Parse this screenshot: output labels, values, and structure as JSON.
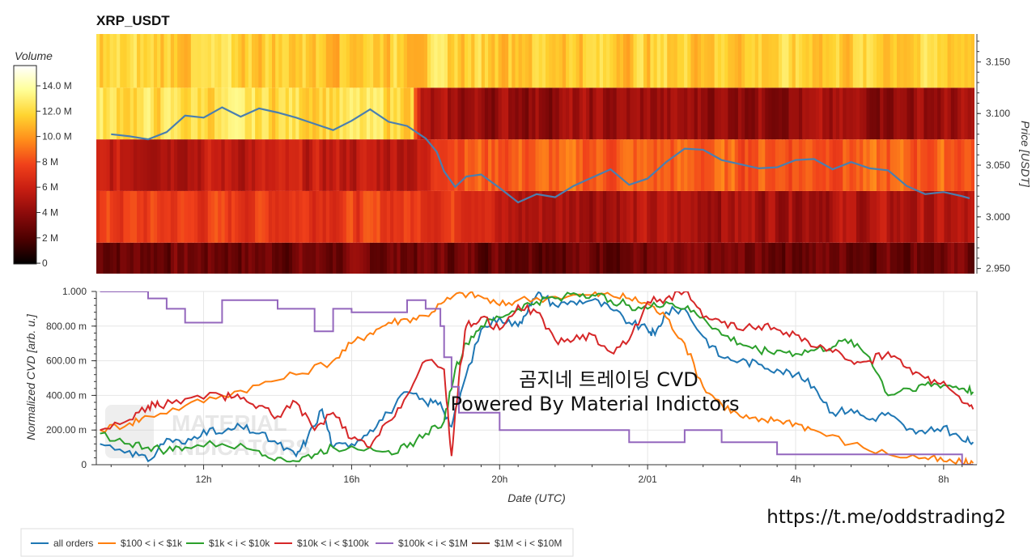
{
  "chart_data": [
    {
      "type": "heatmap",
      "title": "XRP_USDT",
      "ylabel": "Price [USDT]",
      "y_ticks": [
        "3.150",
        "3.100",
        "3.050",
        "3.000",
        "2.950"
      ],
      "ylim": [
        2.945,
        3.177
      ],
      "price_bands": [
        {
          "low": 2.945,
          "high": 2.975
        },
        {
          "low": 2.975,
          "high": 3.025
        },
        {
          "low": 3.025,
          "high": 3.075
        },
        {
          "low": 3.075,
          "high": 3.125
        },
        {
          "low": 3.125,
          "high": 3.177
        }
      ],
      "colorbar": {
        "title": "Volume",
        "ticks": [
          "14.0 M",
          "12.0 M",
          "10.0 M",
          "8 M",
          "6 M",
          "4 M",
          "2 M",
          "0"
        ],
        "range": [
          0,
          15.5
        ],
        "colors": [
          "#000000",
          "#4a0000",
          "#8a0a0a",
          "#c81e12",
          "#f0401a",
          "#ff8a1a",
          "#ffd430",
          "#ffff9a",
          "#ffffff"
        ]
      },
      "series": [
        {
          "name": "price",
          "color": "#4a7fb0",
          "x": [
            0,
            0.5,
            1,
            1.5,
            2,
            2.5,
            3,
            3.5,
            4,
            4.5,
            5,
            5.5,
            6,
            6.5,
            7,
            7.5,
            8,
            8.5,
            8.8,
            9,
            9.3,
            9.6,
            10,
            10.5,
            11,
            11.5,
            12,
            12.5,
            13,
            13.5,
            14,
            14.5,
            15,
            15.5,
            16,
            16.5,
            17,
            17.5,
            18,
            18.5,
            19,
            19.5,
            20,
            20.5,
            21,
            21.5,
            22,
            22.5,
            23,
            23.2
          ],
          "values": [
            3.08,
            3.078,
            3.075,
            3.082,
            3.098,
            3.096,
            3.106,
            3.097,
            3.105,
            3.101,
            3.096,
            3.09,
            3.084,
            3.093,
            3.104,
            3.092,
            3.088,
            3.076,
            3.063,
            3.044,
            3.029,
            3.039,
            3.041,
            3.028,
            3.014,
            3.022,
            3.019,
            3.03,
            3.038,
            3.046,
            3.031,
            3.037,
            3.053,
            3.066,
            3.065,
            3.055,
            3.051,
            3.047,
            3.048,
            3.055,
            3.056,
            3.046,
            3.053,
            3.047,
            3.045,
            3.03,
            3.022,
            3.024,
            3.02,
            3.018
          ]
        }
      ]
    },
    {
      "type": "line",
      "xlabel": "Date (UTC)",
      "ylabel": "Normalized CVD [arb. u.]",
      "x_ticks": [
        "12h",
        "16h",
        "20h",
        "2/01",
        "4h",
        "8h"
      ],
      "x_tick_hours": [
        2.5,
        6.5,
        10.5,
        14.5,
        18.5,
        22.5
      ],
      "xlim": [
        -0.4,
        23.4
      ],
      "y_ticks": [
        "0",
        "200.00 m",
        "400.00 m",
        "600.00 m",
        "800.00 m",
        "1.000"
      ],
      "ylim": [
        0,
        1.0
      ],
      "annotations": [
        "곰지네 트레이딩 CVD",
        "Powered By Material Indictors"
      ],
      "legend_position": "bottom-left",
      "series": [
        {
          "name": "all orders",
          "color": "#1f77b4",
          "x": [
            -0.3,
            0.5,
            1.0,
            1.5,
            2.0,
            2.5,
            3.0,
            3.5,
            4.0,
            4.5,
            5.0,
            5.3,
            5.7,
            6.0,
            6.5,
            7.0,
            7.5,
            8.0,
            8.5,
            8.9,
            9.2,
            9.5,
            10.0,
            10.5,
            11.0,
            11.3,
            11.6,
            12.0,
            12.5,
            13.0,
            13.5,
            14.0,
            14.5,
            14.7,
            15.0,
            15.5,
            16.0,
            16.5,
            17.0,
            17.5,
            18.0,
            18.5,
            19.0,
            19.5,
            20.0,
            20.5,
            21.0,
            21.5,
            22.0,
            22.5,
            23.0,
            23.3
          ],
          "values": [
            0.12,
            0.08,
            0.02,
            0.15,
            0.12,
            0.2,
            0.18,
            0.22,
            0.18,
            0.12,
            0.05,
            0.15,
            0.32,
            0.1,
            0.12,
            0.2,
            0.3,
            0.42,
            0.36,
            0.36,
            0.22,
            0.45,
            0.78,
            0.85,
            0.8,
            0.92,
            0.99,
            0.92,
            0.94,
            0.95,
            0.9,
            0.82,
            0.78,
            0.75,
            0.88,
            0.9,
            0.74,
            0.62,
            0.6,
            0.58,
            0.55,
            0.52,
            0.45,
            0.3,
            0.32,
            0.26,
            0.3,
            0.2,
            0.18,
            0.22,
            0.14,
            0.13
          ]
        },
        {
          "name": "$100 < i < $1k",
          "color": "#ff7f0e",
          "x": [
            -0.3,
            0.5,
            1.0,
            2.0,
            3.0,
            4.0,
            5.0,
            6.0,
            6.5,
            7.0,
            7.5,
            8.0,
            8.5,
            9.0,
            9.5,
            10.0,
            10.5,
            11.0,
            12.0,
            13.0,
            13.5,
            14.0,
            14.5,
            15.0,
            15.5,
            16.0,
            16.5,
            17.0,
            17.5,
            18.0,
            18.5,
            19.0,
            20.0,
            21.0,
            22.0,
            22.5,
            23.0,
            23.3
          ],
          "values": [
            0.2,
            0.24,
            0.28,
            0.34,
            0.4,
            0.46,
            0.52,
            0.6,
            0.7,
            0.76,
            0.82,
            0.84,
            0.86,
            0.94,
            0.99,
            0.97,
            0.92,
            0.95,
            0.97,
            0.98,
            0.98,
            0.96,
            0.93,
            0.85,
            0.7,
            0.45,
            0.35,
            0.28,
            0.25,
            0.26,
            0.24,
            0.2,
            0.12,
            0.06,
            0.04,
            0.02,
            0.01,
            0.01
          ]
        },
        {
          "name": "$1k < i < $10k",
          "color": "#2ca02c",
          "x": [
            -0.3,
            0.5,
            1.0,
            1.5,
            2.0,
            3.0,
            4.0,
            4.5,
            5.0,
            5.5,
            6.0,
            7.0,
            7.5,
            8.0,
            8.5,
            9.0,
            9.3,
            9.6,
            10.0,
            10.5,
            11.0,
            11.5,
            12.0,
            12.5,
            13.0,
            13.5,
            14.0,
            14.5,
            15.0,
            15.5,
            16.0,
            16.5,
            17.0,
            17.5,
            18.0,
            18.5,
            19.0,
            19.5,
            20.0,
            20.5,
            21.0,
            21.5,
            22.0,
            22.5,
            23.0,
            23.3
          ],
          "values": [
            0.18,
            0.12,
            0.1,
            0.08,
            0.1,
            0.12,
            0.08,
            0.04,
            0.02,
            0.06,
            0.1,
            0.1,
            0.08,
            0.1,
            0.18,
            0.25,
            0.55,
            0.7,
            0.8,
            0.85,
            0.9,
            0.94,
            0.96,
            0.99,
            0.98,
            0.95,
            0.92,
            0.9,
            0.94,
            0.9,
            0.85,
            0.75,
            0.7,
            0.66,
            0.66,
            0.64,
            0.66,
            0.68,
            0.72,
            0.62,
            0.4,
            0.44,
            0.46,
            0.46,
            0.44,
            0.42
          ]
        },
        {
          "name": "$10k < i < $100k",
          "color": "#d62728",
          "x": [
            -0.3,
            0.5,
            1.0,
            1.3,
            2.0,
            3.0,
            3.5,
            4.0,
            4.5,
            5.0,
            5.5,
            6.0,
            6.5,
            7.0,
            7.5,
            8.0,
            8.5,
            9.0,
            9.2,
            9.4,
            9.6,
            10.0,
            10.5,
            11.0,
            11.5,
            12.0,
            12.5,
            13.0,
            13.5,
            14.0,
            14.5,
            15.0,
            15.5,
            16.0,
            16.5,
            17.0,
            17.5,
            18.0,
            18.5,
            19.0,
            19.5,
            20.0,
            20.5,
            21.0,
            21.5,
            22.0,
            22.5,
            23.0,
            23.3
          ],
          "values": [
            0.2,
            0.26,
            0.34,
            0.34,
            0.38,
            0.4,
            0.38,
            0.34,
            0.28,
            0.36,
            0.2,
            0.3,
            0.15,
            0.1,
            0.25,
            0.4,
            0.6,
            0.55,
            0.05,
            0.5,
            0.8,
            0.85,
            0.78,
            0.92,
            0.88,
            0.72,
            0.72,
            0.75,
            0.65,
            0.72,
            0.94,
            0.96,
            1.0,
            0.85,
            0.82,
            0.78,
            0.8,
            0.78,
            0.75,
            0.68,
            0.65,
            0.6,
            0.6,
            0.65,
            0.56,
            0.5,
            0.48,
            0.36,
            0.32
          ]
        },
        {
          "name": "$100k < i < $1M",
          "color": "#9467bd",
          "step": true,
          "x": [
            -0.3,
            1.0,
            1.5,
            2.0,
            2.3,
            3.0,
            3.5,
            4.5,
            5.0,
            5.5,
            6.0,
            6.5,
            7.5,
            8.0,
            8.5,
            8.9,
            9.0,
            9.2,
            9.4,
            9.6,
            10.0,
            10.5,
            11.0,
            12.0,
            13.0,
            14.0,
            15.0,
            15.5,
            16.0,
            16.5,
            17.0,
            18.0,
            19.0,
            20.0,
            21.0,
            22.0,
            22.5,
            23.0,
            23.3
          ],
          "values": [
            1.0,
            0.96,
            0.9,
            0.82,
            0.82,
            0.95,
            0.95,
            0.9,
            0.9,
            0.77,
            0.9,
            0.88,
            0.88,
            0.95,
            0.9,
            0.8,
            0.62,
            0.45,
            0.3,
            0.3,
            0.3,
            0.2,
            0.2,
            0.2,
            0.2,
            0.13,
            0.13,
            0.2,
            0.2,
            0.13,
            0.13,
            0.06,
            0.06,
            0.06,
            0.06,
            0.06,
            0.06,
            0.0,
            0.0
          ]
        },
        {
          "name": "$1M < i < $10M",
          "color": "#8c2d19",
          "values": []
        }
      ]
    }
  ],
  "watermark_url": "https://t.me/oddstrading2",
  "legend_items": [
    {
      "label": "all orders",
      "color": "#1f77b4"
    },
    {
      "label": "$100 < i < $1k",
      "color": "#ff7f0e"
    },
    {
      "label": "$1k < i < $10k",
      "color": "#2ca02c"
    },
    {
      "label": "$10k < i < $100k",
      "color": "#d62728"
    },
    {
      "label": "$100k < i < $1M",
      "color": "#9467bd"
    },
    {
      "label": "$1M < i < $10M",
      "color": "#8c2d19"
    }
  ]
}
